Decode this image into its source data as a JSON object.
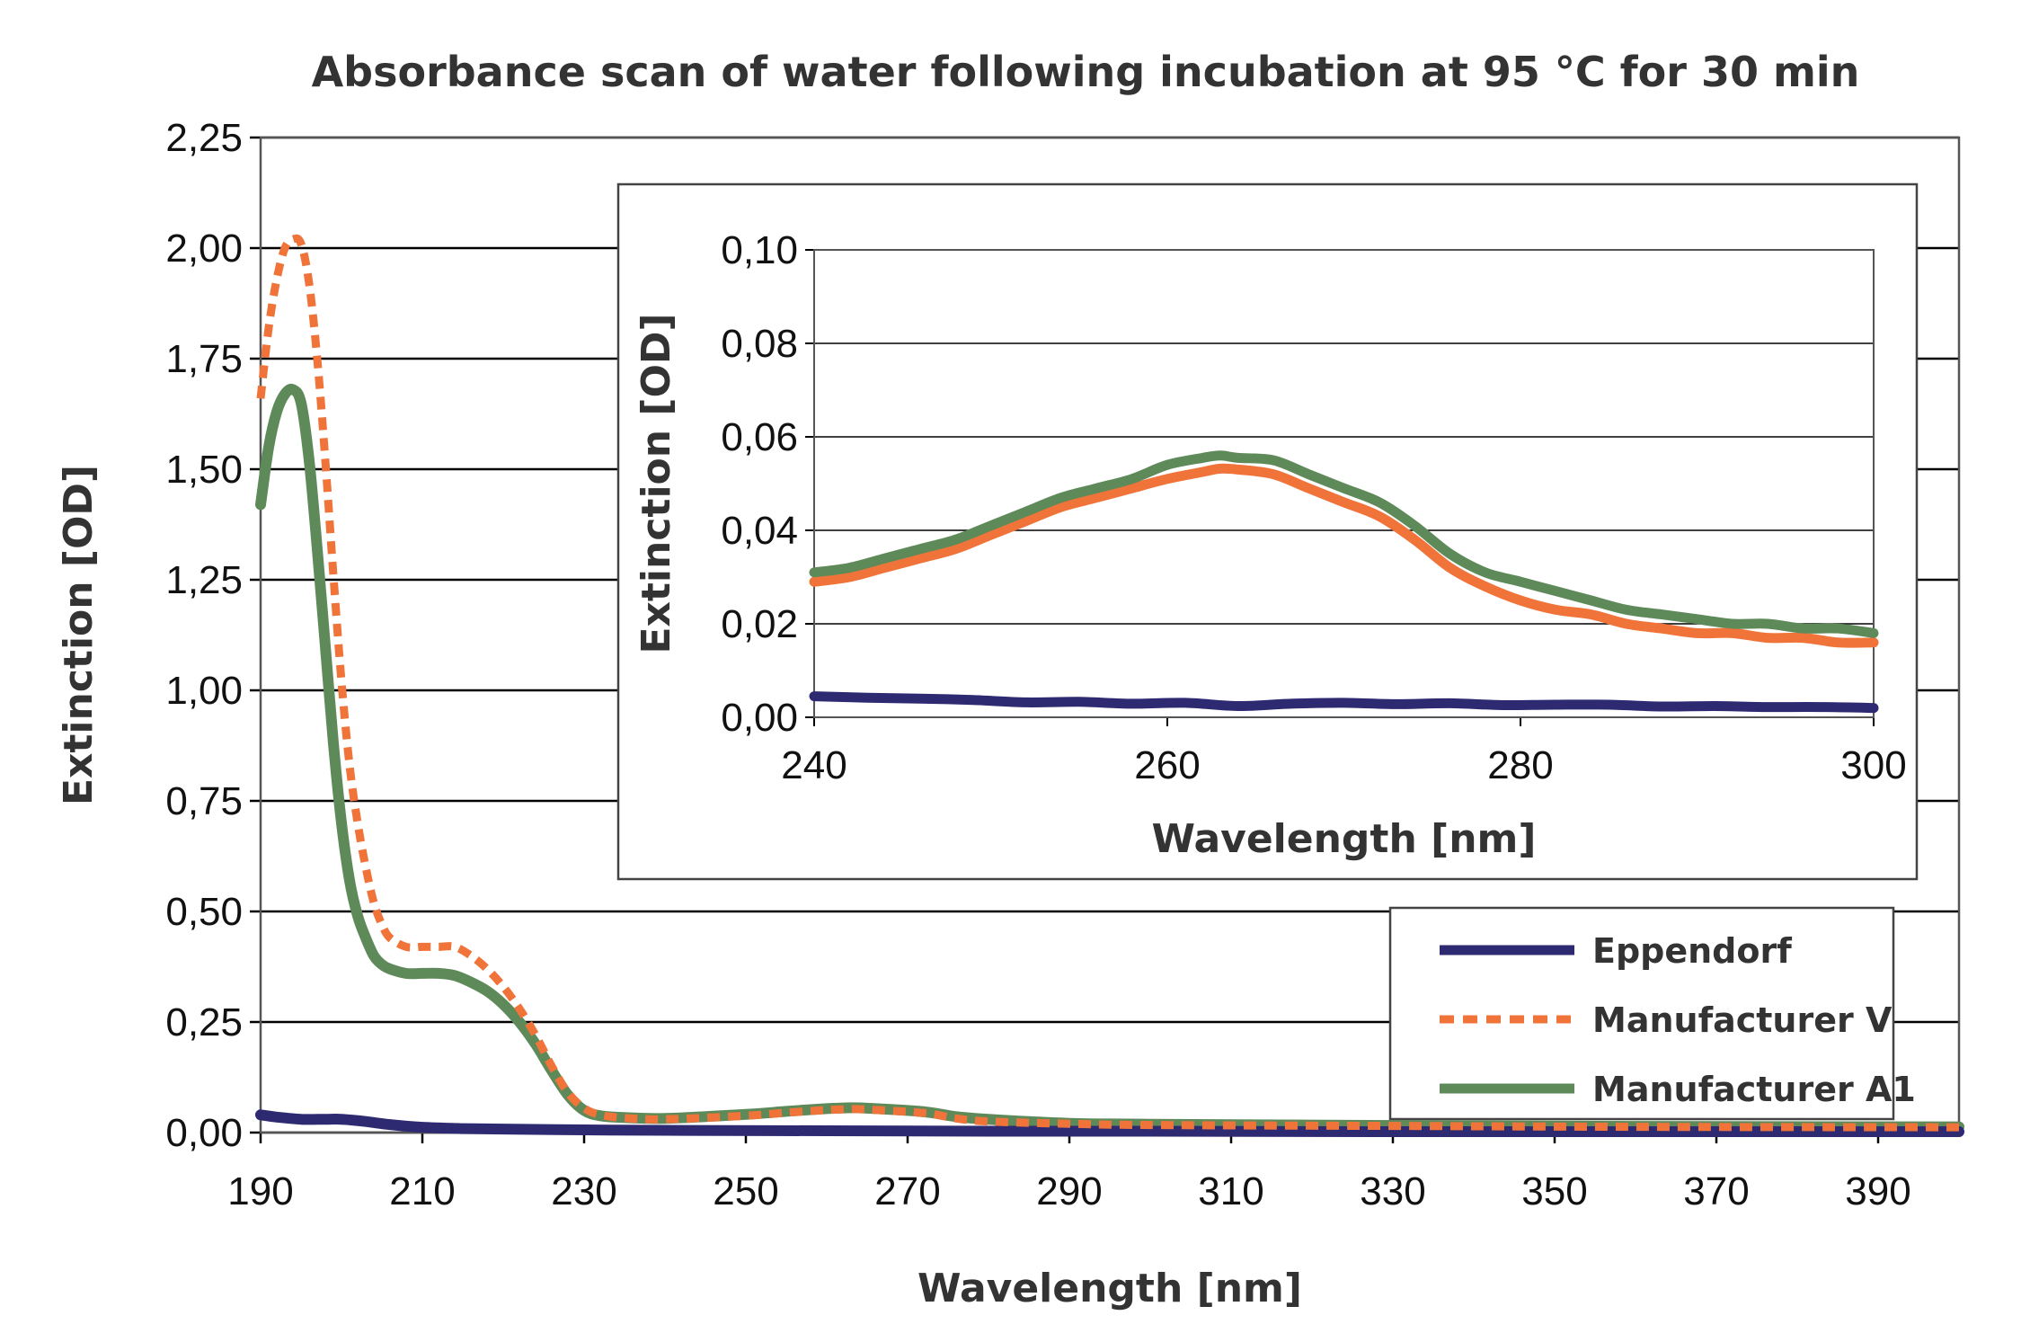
{
  "chart_data": [
    {
      "type": "line",
      "title": "Absorbance scan of water following incubation at 95 °C for 30 min",
      "xlabel": "Wavelength [nm]",
      "ylabel": "Extinction [OD]",
      "xlim": [
        190,
        400
      ],
      "ylim": [
        0,
        2.25
      ],
      "xticks": [
        "190",
        "210",
        "230",
        "250",
        "270",
        "290",
        "310",
        "330",
        "350",
        "370",
        "390"
      ],
      "yticks": [
        "0,00",
        "0,25",
        "0,50",
        "0,75",
        "1,00",
        "1,25",
        "1,50",
        "1,75",
        "2,00",
        "2,25"
      ],
      "grid": "horizontal",
      "series": [
        {
          "name": "Eppendorf",
          "color": "#2e2a72",
          "style": "solid",
          "x": [
            190,
            192,
            195,
            198,
            200,
            203,
            206,
            210,
            215,
            220,
            230,
            240,
            260,
            280,
            300,
            330,
            360,
            400
          ],
          "y": [
            0.04,
            0.035,
            0.03,
            0.03,
            0.03,
            0.025,
            0.018,
            0.012,
            0.009,
            0.008,
            0.006,
            0.005,
            0.004,
            0.003,
            0.003,
            0.002,
            0.002,
            0.002
          ]
        },
        {
          "name": "Manufacturer V",
          "color": "#f0743a",
          "style": "dashed",
          "x": [
            190,
            191,
            192,
            193,
            194,
            195,
            196,
            197,
            198,
            199,
            200,
            201,
            202,
            203,
            204,
            205,
            206,
            208,
            210,
            212,
            214,
            216,
            218,
            220,
            222,
            224,
            226,
            228,
            230,
            232,
            235,
            240,
            250,
            255,
            260,
            263,
            265,
            270,
            273,
            276,
            280,
            290,
            300,
            330,
            360,
            400
          ],
          "y": [
            1.66,
            1.82,
            1.93,
            2.0,
            2.02,
            2.01,
            1.92,
            1.75,
            1.52,
            1.26,
            1.02,
            0.83,
            0.7,
            0.6,
            0.52,
            0.47,
            0.44,
            0.42,
            0.42,
            0.42,
            0.42,
            0.4,
            0.37,
            0.33,
            0.28,
            0.22,
            0.15,
            0.09,
            0.055,
            0.04,
            0.033,
            0.03,
            0.038,
            0.045,
            0.051,
            0.053,
            0.052,
            0.047,
            0.042,
            0.032,
            0.025,
            0.02,
            0.017,
            0.015,
            0.013,
            0.012
          ]
        },
        {
          "name": "Manufacturer A1",
          "color": "#5e8a5a",
          "style": "solid",
          "x": [
            190,
            191,
            192,
            193,
            194,
            195,
            196,
            197,
            198,
            199,
            200,
            201,
            202,
            203,
            204,
            205,
            206,
            208,
            210,
            212,
            214,
            216,
            218,
            220,
            222,
            224,
            226,
            228,
            230,
            232,
            235,
            240,
            250,
            255,
            260,
            263,
            265,
            270,
            273,
            276,
            280,
            290,
            300,
            330,
            360,
            400
          ],
          "y": [
            1.42,
            1.55,
            1.63,
            1.67,
            1.68,
            1.65,
            1.52,
            1.32,
            1.1,
            0.88,
            0.7,
            0.57,
            0.49,
            0.44,
            0.4,
            0.38,
            0.37,
            0.36,
            0.36,
            0.36,
            0.355,
            0.34,
            0.32,
            0.29,
            0.25,
            0.2,
            0.14,
            0.085,
            0.05,
            0.038,
            0.034,
            0.032,
            0.041,
            0.048,
            0.054,
            0.056,
            0.055,
            0.05,
            0.045,
            0.036,
            0.03,
            0.021,
            0.019,
            0.016,
            0.014,
            0.013
          ]
        }
      ],
      "legend": "bottom-right",
      "legend_entries": [
        "Eppendorf",
        "Manufacturer V",
        "Manufacturer A1"
      ]
    },
    {
      "type": "line",
      "title": "",
      "placement": "inset",
      "xlabel": "Wavelength [nm]",
      "ylabel": "Extinction [OD]",
      "xlim": [
        240,
        300
      ],
      "ylim": [
        0,
        0.1
      ],
      "xticks": [
        "240",
        "260",
        "280",
        "300"
      ],
      "yticks": [
        "0,00",
        "0,02",
        "0,04",
        "0,06",
        "0,08",
        "0,10"
      ],
      "grid": "horizontal",
      "series": [
        {
          "name": "Eppendorf",
          "color": "#2e2a72",
          "style": "solid",
          "x": [
            240,
            243,
            246,
            249,
            252,
            255,
            258,
            261,
            264,
            267,
            270,
            273,
            276,
            279,
            282,
            285,
            288,
            291,
            294,
            297,
            300
          ],
          "y": [
            0.0045,
            0.0042,
            0.004,
            0.0037,
            0.0032,
            0.0033,
            0.0029,
            0.0031,
            0.0024,
            0.0029,
            0.0031,
            0.0028,
            0.003,
            0.0026,
            0.0027,
            0.0027,
            0.0023,
            0.0024,
            0.0022,
            0.0022,
            0.002
          ]
        },
        {
          "name": "Manufacturer V",
          "color": "#f0743a",
          "style": "solid",
          "x": [
            240,
            242,
            244,
            246,
            248,
            250,
            252,
            254,
            256,
            258,
            260,
            262,
            263,
            264,
            266,
            268,
            270,
            272,
            274,
            276,
            278,
            280,
            282,
            284,
            286,
            288,
            290,
            292,
            294,
            296,
            298,
            300
          ],
          "y": [
            0.029,
            0.03,
            0.032,
            0.034,
            0.036,
            0.039,
            0.042,
            0.045,
            0.047,
            0.049,
            0.051,
            0.0525,
            0.0532,
            0.053,
            0.052,
            0.049,
            0.046,
            0.043,
            0.038,
            0.032,
            0.028,
            0.025,
            0.023,
            0.022,
            0.02,
            0.019,
            0.018,
            0.018,
            0.017,
            0.017,
            0.016,
            0.016
          ]
        },
        {
          "name": "Manufacturer A1",
          "color": "#5e8a5a",
          "style": "solid",
          "x": [
            240,
            242,
            244,
            246,
            248,
            250,
            252,
            254,
            256,
            258,
            260,
            262,
            263,
            264,
            266,
            268,
            270,
            272,
            274,
            276,
            278,
            280,
            282,
            284,
            286,
            288,
            290,
            292,
            294,
            296,
            298,
            300
          ],
          "y": [
            0.031,
            0.032,
            0.034,
            0.036,
            0.038,
            0.041,
            0.044,
            0.047,
            0.049,
            0.051,
            0.054,
            0.0555,
            0.056,
            0.0555,
            0.055,
            0.052,
            0.049,
            0.046,
            0.041,
            0.035,
            0.031,
            0.029,
            0.027,
            0.025,
            0.023,
            0.022,
            0.021,
            0.02,
            0.02,
            0.019,
            0.019,
            0.018
          ]
        }
      ]
    }
  ]
}
